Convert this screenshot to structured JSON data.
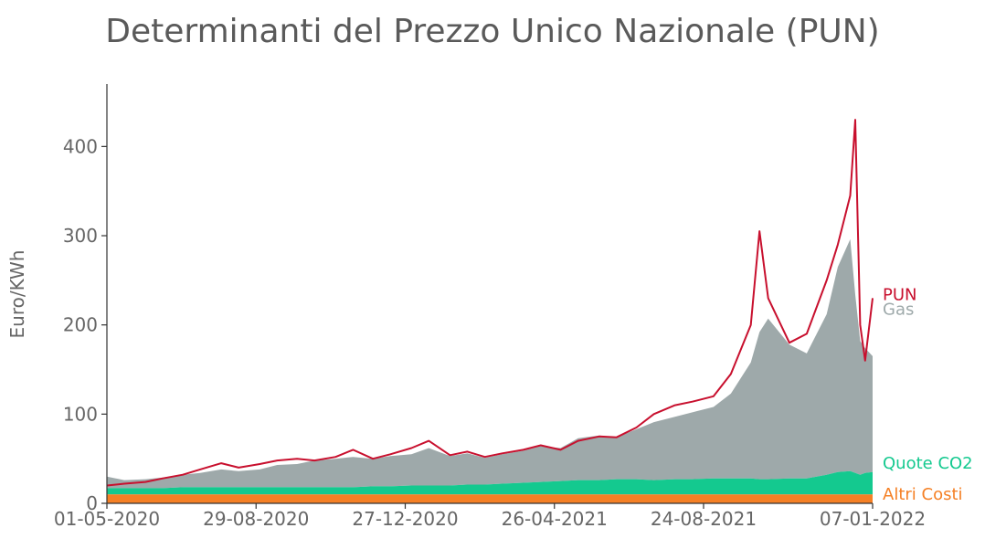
{
  "chart_data": {
    "type": "area",
    "title": "Determinanti del Prezzo Unico Nazionale (PUN)",
    "ylabel": "Euro/KWh",
    "xlabel": "",
    "xlim": [
      "2020-05-01",
      "2022-01-07"
    ],
    "ylim": [
      0,
      470
    ],
    "yticks": [
      0,
      100,
      200,
      300,
      400
    ],
    "xticks": [
      "01-05-2020",
      "29-08-2020",
      "27-12-2020",
      "26-04-2021",
      "24-08-2021",
      "07-01-2022"
    ],
    "grid": false,
    "legend": "direct labels at right end",
    "colors": {
      "pun": "#c8102e",
      "gas": "#9ea9aa",
      "co2": "#14c98f",
      "altri": "#f58025"
    },
    "x": [
      "2020-05-01",
      "2020-05-15",
      "2020-06-01",
      "2020-06-15",
      "2020-07-01",
      "2020-07-15",
      "2020-08-01",
      "2020-08-15",
      "2020-09-01",
      "2020-09-15",
      "2020-10-01",
      "2020-10-15",
      "2020-11-01",
      "2020-11-15",
      "2020-12-01",
      "2020-12-15",
      "2021-01-01",
      "2021-01-15",
      "2021-02-01",
      "2021-02-15",
      "2021-03-01",
      "2021-03-15",
      "2021-04-01",
      "2021-04-15",
      "2021-05-01",
      "2021-05-15",
      "2021-06-01",
      "2021-06-15",
      "2021-07-01",
      "2021-07-15",
      "2021-08-01",
      "2021-08-15",
      "2021-09-01",
      "2021-09-15",
      "2021-10-01",
      "2021-10-08",
      "2021-10-15",
      "2021-11-01",
      "2021-11-15",
      "2021-12-01",
      "2021-12-10",
      "2021-12-20",
      "2021-12-24",
      "2021-12-28",
      "2022-01-01",
      "2022-01-07"
    ],
    "series": [
      {
        "name": "Altri Costi",
        "values": [
          10,
          10,
          10,
          10,
          10,
          10,
          10,
          10,
          10,
          10,
          10,
          10,
          10,
          10,
          10,
          10,
          10,
          10,
          10,
          10,
          10,
          10,
          10,
          10,
          10,
          10,
          10,
          10,
          10,
          10,
          10,
          10,
          10,
          10,
          10,
          10,
          10,
          10,
          10,
          10,
          10,
          10,
          10,
          10,
          10,
          10
        ]
      },
      {
        "name": "Quote CO2",
        "values": [
          7,
          7,
          7,
          7,
          8,
          8,
          8,
          8,
          8,
          8,
          8,
          8,
          8,
          8,
          9,
          9,
          10,
          10,
          10,
          11,
          11,
          12,
          13,
          14,
          15,
          16,
          16,
          17,
          17,
          16,
          17,
          17,
          18,
          18,
          18,
          17,
          17,
          18,
          18,
          22,
          25,
          26,
          24,
          22,
          24,
          25
        ]
      },
      {
        "name": "Gas",
        "values": [
          13,
          9,
          10,
          12,
          14,
          16,
          20,
          18,
          20,
          25,
          26,
          30,
          32,
          34,
          31,
          34,
          35,
          42,
          33,
          35,
          30,
          33,
          36,
          40,
          37,
          47,
          50,
          47,
          56,
          65,
          70,
          75,
          80,
          95,
          130,
          165,
          180,
          150,
          140,
          180,
          230,
          260,
          200,
          150,
          140,
          130
        ]
      },
      {
        "name": "PUN",
        "values": [
          20,
          22,
          24,
          28,
          32,
          38,
          45,
          40,
          44,
          48,
          50,
          48,
          52,
          60,
          50,
          55,
          62,
          70,
          54,
          58,
          52,
          56,
          60,
          65,
          60,
          70,
          75,
          74,
          85,
          100,
          110,
          114,
          120,
          145,
          200,
          305,
          230,
          180,
          190,
          250,
          290,
          345,
          430,
          200,
          160,
          230
        ]
      }
    ]
  }
}
